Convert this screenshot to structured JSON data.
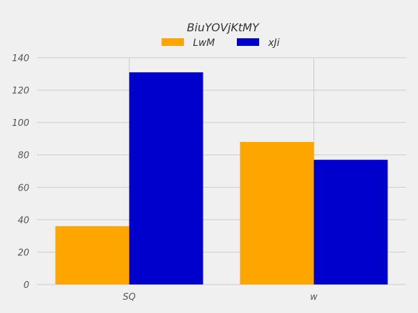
{
  "chart_data": {
    "type": "bar",
    "title": "BiuYOVjKtMY",
    "xlabel": "",
    "ylabel": "",
    "categories": [
      "SQ",
      "w"
    ],
    "series": [
      {
        "name": "LwM",
        "values": [
          36,
          88
        ],
        "color": "#ffa500"
      },
      {
        "name": "xJi",
        "values": [
          131,
          77
        ],
        "color": "#0000cd"
      }
    ],
    "ylim": [
      0,
      140
    ],
    "yticks": [
      0,
      20,
      40,
      60,
      80,
      100,
      120,
      140
    ],
    "yticks_labels": [
      "0",
      "20",
      "40",
      "60",
      "80",
      "100",
      "120",
      "140"
    ],
    "grid": true,
    "legend_position": "top-center",
    "background": "#f0f0f0"
  }
}
